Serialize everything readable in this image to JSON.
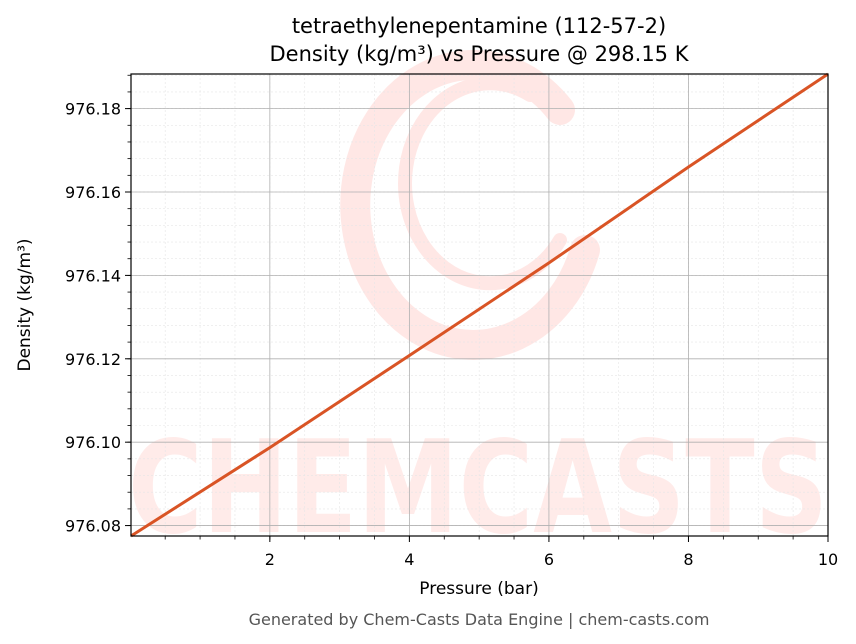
{
  "chart_data": {
    "type": "line",
    "title": "tetraethylenepentamine (112-57-2)",
    "subtitle": "Density (kg/m³) vs Pressure @ 298.15 K",
    "xlabel": "Pressure (bar)",
    "ylabel": "Density (kg/m³)",
    "xlim": [
      0.01,
      10
    ],
    "ylim": [
      976.0775,
      976.1883
    ],
    "x_ticks": [
      2,
      4,
      6,
      8,
      10
    ],
    "y_ticks": [
      976.08,
      976.1,
      976.12,
      976.14,
      976.16,
      976.18
    ],
    "x_tick_labels": [
      "2",
      "4",
      "6",
      "8",
      "10"
    ],
    "y_tick_labels": [
      "976.08",
      "976.10",
      "976.12",
      "976.14",
      "976.16",
      "976.18"
    ],
    "grid": true,
    "minor_grid": true,
    "series": [
      {
        "color": "#d95425",
        "x": [
          0.01,
          2,
          4,
          6,
          8,
          10
        ],
        "y": [
          976.0775,
          976.0987,
          976.1208,
          976.143,
          976.166,
          976.1883
        ]
      }
    ]
  },
  "watermark": {
    "text": "CHEMCASTS",
    "color": "#ff4433"
  },
  "footer": "Generated by Chem-Casts Data Engine | chem-casts.com"
}
